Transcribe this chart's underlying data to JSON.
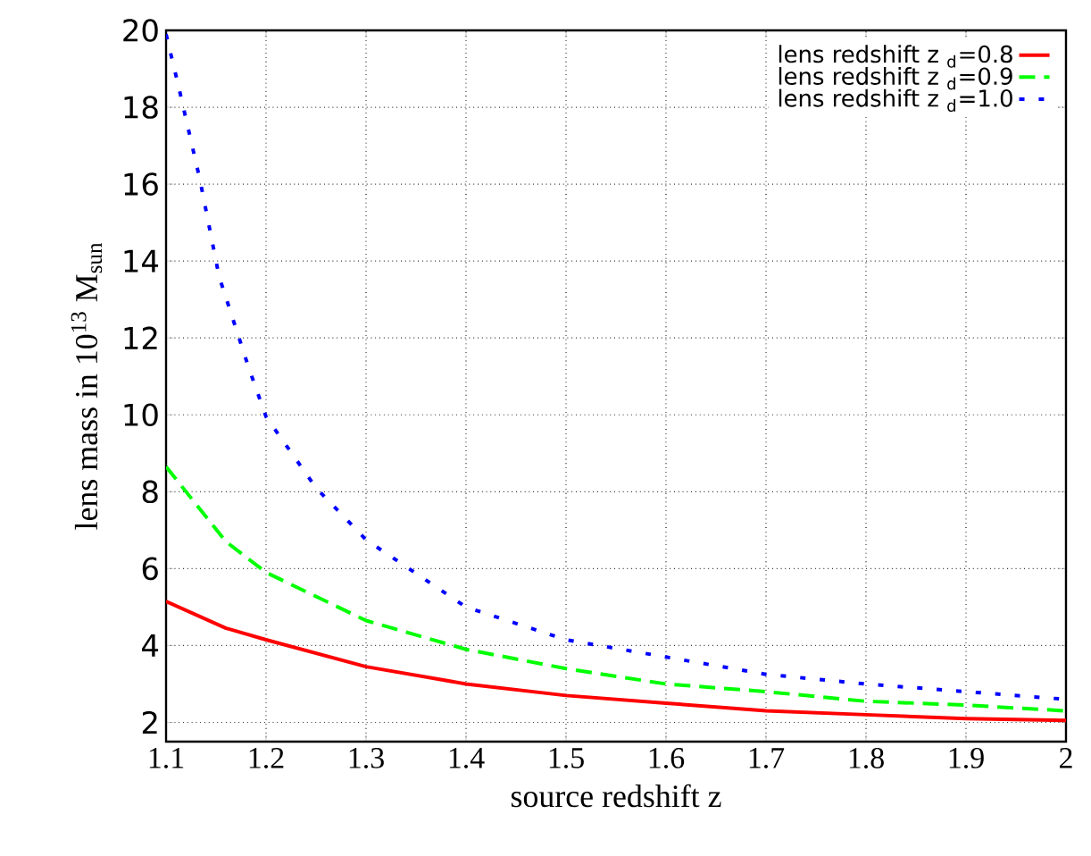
{
  "chart_data": {
    "type": "line",
    "xlabel": "source redshift z",
    "ylabel": "lens mass in 10$^{13}$ M$_{sun}$",
    "xlim": [
      1.1,
      2.0
    ],
    "ylim": [
      1.5,
      20
    ],
    "xticks": [
      1.1,
      1.2,
      1.3,
      1.4,
      1.5,
      1.6,
      1.7,
      1.8,
      1.9,
      2
    ],
    "yticks": [
      2,
      4,
      6,
      8,
      10,
      12,
      14,
      16,
      18,
      20
    ],
    "grid": true,
    "legend": "top right",
    "marker": "none",
    "x": [
      1.1,
      1.16,
      1.2,
      1.3,
      1.4,
      1.5,
      1.6,
      1.7,
      1.8,
      1.9,
      2.0
    ],
    "series": [
      {
        "name": "lens redshift z $_{d}$=0.8",
        "color": "#ff0000",
        "line_style": "solid",
        "values": [
          5.15,
          4.45,
          4.15,
          3.45,
          3.0,
          2.7,
          2.5,
          2.3,
          2.2,
          2.1,
          2.05
        ]
      },
      {
        "name": "lens redshift z $_{d}$=0.9",
        "color": "#00ff00",
        "line_style": "dashed",
        "values": [
          8.65,
          6.7,
          5.9,
          4.65,
          3.9,
          3.4,
          3.0,
          2.8,
          2.55,
          2.45,
          2.3
        ]
      },
      {
        "name": "lens redshift z $_{d}$=1.0",
        "color": "#0000ff",
        "line_style": "dotted",
        "x": [
          1.1,
          1.112,
          1.134,
          1.153,
          1.183,
          1.2,
          1.25,
          1.3,
          1.4,
          1.5,
          1.6,
          1.7,
          1.8,
          1.9,
          2.0
        ],
        "values": [
          19.9,
          18.6,
          16.1,
          13.6,
          11.2,
          9.95,
          8.1,
          6.75,
          5.0,
          4.15,
          3.7,
          3.25,
          3.0,
          2.8,
          2.6
        ]
      }
    ]
  }
}
